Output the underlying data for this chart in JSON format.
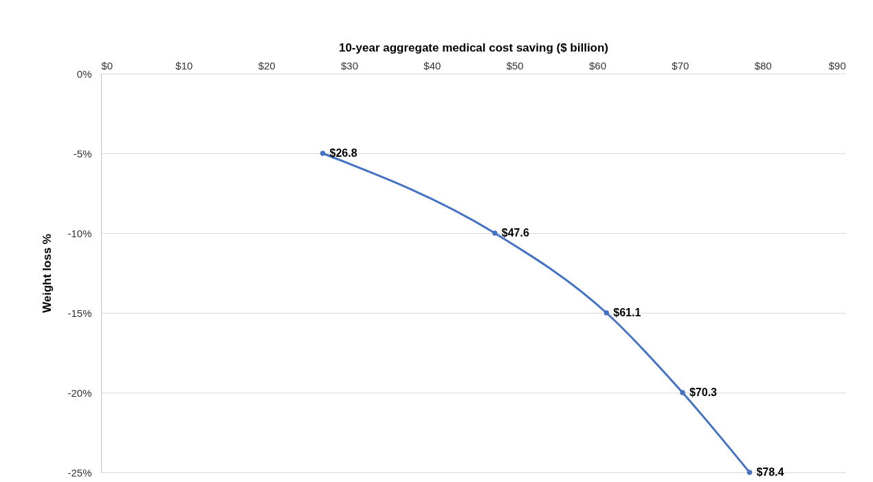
{
  "chart_data": {
    "type": "line",
    "xlabel": "10-year aggregate medical cost saving ($ billion)",
    "ylabel": "Weight loss %",
    "x": [
      26.8,
      47.6,
      61.1,
      70.3,
      78.4
    ],
    "values": [
      -5,
      -10,
      -15,
      -20,
      -25
    ],
    "annotations": [
      {
        "text": "$26.8",
        "x": 26.8,
        "y": -5
      },
      {
        "text": "$47.6",
        "x": 47.6,
        "y": -10
      },
      {
        "text": "$61.1",
        "x": 61.1,
        "y": -15
      },
      {
        "text": "$70.3",
        "x": 70.3,
        "y": -20
      },
      {
        "text": "$78.4",
        "x": 78.4,
        "y": -25
      }
    ],
    "color": "#4472c4",
    "marker": "circle",
    "line_style": "solid",
    "grid": "y",
    "xlim": [
      0,
      90
    ],
    "xticks": [
      {
        "value": 0,
        "label": "$0"
      },
      {
        "value": 10,
        "label": "$10"
      },
      {
        "value": 20,
        "label": "$20"
      },
      {
        "value": 30,
        "label": "$30"
      },
      {
        "value": 40,
        "label": "$40"
      },
      {
        "value": 50,
        "label": "$50"
      },
      {
        "value": 60,
        "label": "$60"
      },
      {
        "value": 70,
        "label": "$70"
      },
      {
        "value": 80,
        "label": "$80"
      },
      {
        "value": 90,
        "label": "$90"
      }
    ],
    "ylim": [
      -25,
      0
    ],
    "yticks": [
      {
        "value": 0,
        "label": "0%"
      },
      {
        "value": -5,
        "label": "-5%"
      },
      {
        "value": -10,
        "label": "-10%"
      },
      {
        "value": -15,
        "label": "-15%"
      },
      {
        "value": -20,
        "label": "-20%"
      },
      {
        "value": -25,
        "label": "-25%"
      }
    ]
  }
}
